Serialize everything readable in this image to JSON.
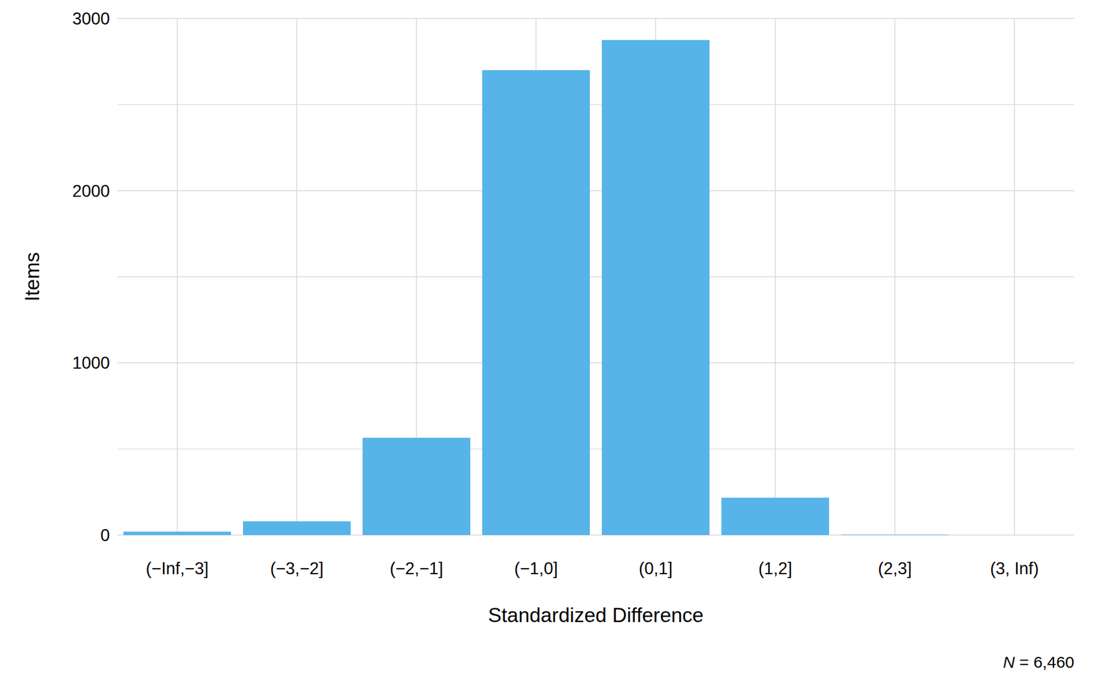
{
  "chart_data": {
    "type": "bar",
    "x_label": "Standardized Difference",
    "y_label": "Items",
    "annotation": "N = 6,460",
    "categories": [
      "(−Inf,−3]",
      "(−3,−2]",
      "(−2,−1]",
      "(−1,0]",
      "(0,1]",
      "(1,2]",
      "(2,3]",
      "(3, Inf)"
    ],
    "values": [
      20,
      80,
      565,
      2700,
      2875,
      217,
      3,
      0
    ],
    "color": "#56b4e9",
    "ylim": [
      0,
      3000
    ],
    "yticks": [
      0,
      1000,
      2000,
      3000
    ],
    "grid": true
  }
}
